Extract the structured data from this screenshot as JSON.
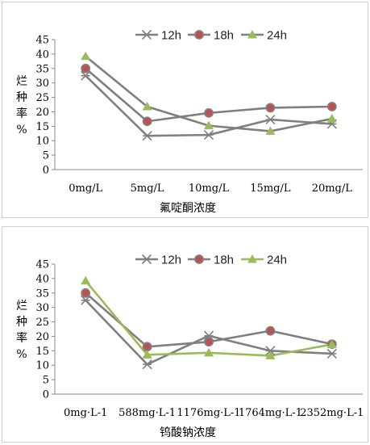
{
  "chart_data": [
    {
      "type": "line",
      "categories": [
        "0mg/L",
        "5mg/L",
        "10mg/L",
        "15mg/L",
        "20mg/L"
      ],
      "xlabel": "氟啶酮浓度",
      "ylabel": [
        "烂",
        "种",
        "率",
        "%"
      ],
      "ylim": [
        0,
        45
      ],
      "yticks": [
        "0",
        "5",
        "10",
        "15",
        "20",
        "25",
        "30",
        "35",
        "40",
        "45"
      ],
      "legend_position": "top-right",
      "series": [
        {
          "name": "12h",
          "values": [
            32.5,
            11.7,
            12.0,
            17.3,
            15.8
          ],
          "color": "#808080",
          "marker": "asterisk"
        },
        {
          "name": "18h",
          "values": [
            35.0,
            16.7,
            19.6,
            21.4,
            21.8
          ],
          "color": "#7f7f7f",
          "marker": "circle",
          "marker_fill": "#c0504d"
        },
        {
          "name": "24h",
          "values": [
            39.2,
            21.8,
            15.2,
            13.3,
            17.6
          ],
          "color": "#7f7f7f",
          "marker": "triangle",
          "marker_fill": "#9bbb59"
        }
      ]
    },
    {
      "type": "line",
      "categories": [
        "0mg·L-1",
        "588mg·L-1",
        "1176mg·L-1",
        "1764mg·L-1",
        "2352mg·L-1"
      ],
      "xlabel": "钨酸钠浓度",
      "ylabel": [
        "烂",
        "种",
        "率",
        "%"
      ],
      "ylim": [
        0,
        45
      ],
      "yticks": [
        "0",
        "5",
        "10",
        "15",
        "20",
        "25",
        "30",
        "35",
        "40",
        "45"
      ],
      "legend_position": "top-right",
      "series": [
        {
          "name": "12h",
          "values": [
            32.5,
            10.3,
            20.2,
            15.0,
            14.0
          ],
          "color": "#7f7f7f",
          "marker": "asterisk"
        },
        {
          "name": "18h",
          "values": [
            35.0,
            16.4,
            18.1,
            21.9,
            17.3
          ],
          "color": "#7f7f7f",
          "marker": "circle",
          "marker_fill": "#c0504d"
        },
        {
          "name": "24h",
          "values": [
            39.2,
            13.6,
            14.3,
            13.3,
            17.2
          ],
          "color": "#9bbb59",
          "marker": "triangle",
          "marker_fill": "#9bbb59"
        }
      ]
    }
  ]
}
